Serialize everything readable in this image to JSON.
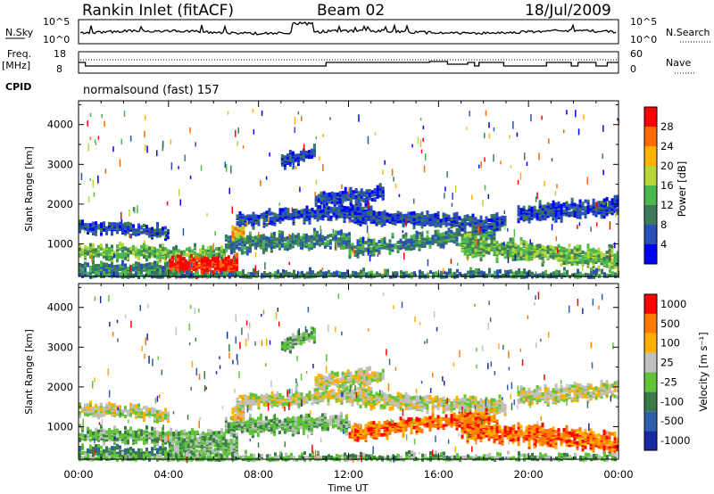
{
  "header": {
    "station": "Rankin Inlet (fitACF)",
    "beam": "Beam 02",
    "date": "18/Jul/2009"
  },
  "nsky_panel": {
    "label": "N.Sky",
    "right_label": "N.Search",
    "ticks_left": [
      "10^5",
      "10^0"
    ],
    "ticks_right": [
      "10^5",
      "10^0"
    ]
  },
  "freq_panel": {
    "label": "Freq.",
    "unit": "[MHz]",
    "right_label": "Nave",
    "ticks_left": [
      "18",
      "8"
    ],
    "ticks_right": [
      "60",
      "0"
    ]
  },
  "cpid": {
    "label": "CPID",
    "text": "normalsound (fast) 157"
  },
  "chart_data": [
    {
      "type": "heatmap",
      "name": "power",
      "ylabel": "Slant Range [km]",
      "yticks": [
        "1000",
        "2000",
        "3000",
        "4000"
      ],
      "ylim": [
        180,
        4600
      ],
      "colorbar_label": "Power [dB]",
      "colorbar_ticks": [
        "28",
        "24",
        "20",
        "16",
        "12",
        "8",
        "4"
      ],
      "colors": [
        "#0000ff",
        "#2a4fb8",
        "#3d7a5a",
        "#4db84d",
        "#b8d63a",
        "#ffb300",
        "#ff6a00",
        "#ff0000"
      ]
    },
    {
      "type": "heatmap",
      "name": "velocity",
      "ylabel": "Slant Range [km]",
      "yticks": [
        "1000",
        "2000",
        "3000",
        "4000"
      ],
      "ylim": [
        180,
        4600
      ],
      "colorbar_label": "Velocity [m s⁻¹]",
      "colorbar_ticks": [
        "1000",
        "500",
        "100",
        "25",
        "-25",
        "-100",
        "-500",
        "-1000"
      ],
      "colors": [
        "#1a2aa0",
        "#2f5fa8",
        "#3a7a4a",
        "#5fc43a",
        "#c0c0c0",
        "#ffb000",
        "#ff7a00",
        "#ff0000"
      ]
    }
  ],
  "x_axis": {
    "label": "Time UT",
    "ticks": [
      "00:00",
      "04:00",
      "08:00",
      "12:00",
      "16:00",
      "20:00",
      "00:00"
    ]
  }
}
